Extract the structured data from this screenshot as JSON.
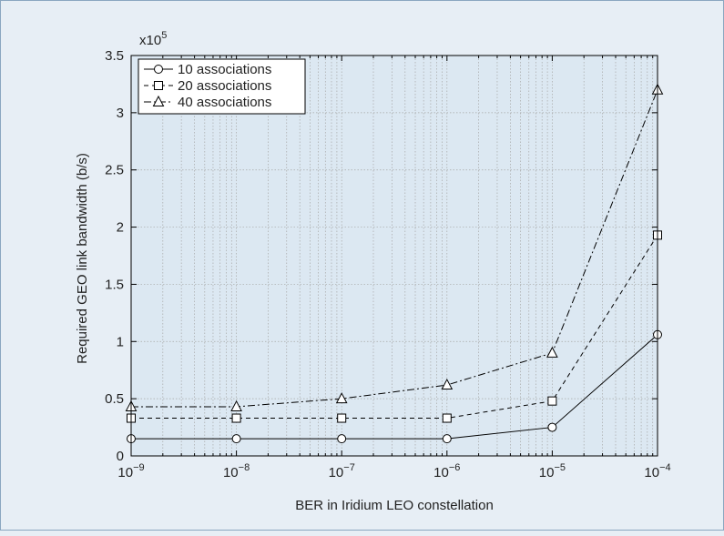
{
  "chart_data": {
    "type": "line",
    "title": "",
    "xlabel": "BER in Iridium LEO constellation",
    "ylabel": "Required GEO link bandwidth (b/s)",
    "y_multiplier": {
      "base": "x10",
      "exp": "5"
    },
    "x_scale": "log",
    "x": [
      1e-09,
      1e-08,
      1e-07,
      1e-06,
      1e-05,
      0.0001
    ],
    "x_tick_labels": [
      {
        "base": "10",
        "exp": "−9"
      },
      {
        "base": "10",
        "exp": "−8"
      },
      {
        "base": "10",
        "exp": "−7"
      },
      {
        "base": "10",
        "exp": "−6"
      },
      {
        "base": "10",
        "exp": "−5"
      },
      {
        "base": "10",
        "exp": "−4"
      }
    ],
    "y_ticks": [
      0,
      0.5,
      1,
      1.5,
      2,
      2.5,
      3,
      3.5
    ],
    "y_tick_labels": [
      "0",
      "0.5",
      "1",
      "1.5",
      "2",
      "2.5",
      "3",
      "3.5"
    ],
    "xlim": [
      1e-09,
      0.0001
    ],
    "ylim": [
      0,
      3.5
    ],
    "grid": true,
    "legend_position": "top-left",
    "series": [
      {
        "name": "10 associations",
        "marker": "circle",
        "line_style": "solid",
        "values": [
          0.15,
          0.15,
          0.15,
          0.15,
          0.25,
          1.06
        ]
      },
      {
        "name": "20 associations",
        "marker": "square",
        "line_style": "dashed",
        "values": [
          0.33,
          0.33,
          0.33,
          0.33,
          0.48,
          1.93
        ]
      },
      {
        "name": "40 associations",
        "marker": "triangle",
        "line_style": "dash-dot",
        "values": [
          0.43,
          0.43,
          0.5,
          0.62,
          0.9,
          3.2
        ]
      }
    ],
    "colors": {
      "background": "#e7eef5",
      "plot_area": "#dce8f2",
      "border": "#8aa6c0",
      "grid": "#a6a6a6",
      "line": "#000000"
    }
  }
}
